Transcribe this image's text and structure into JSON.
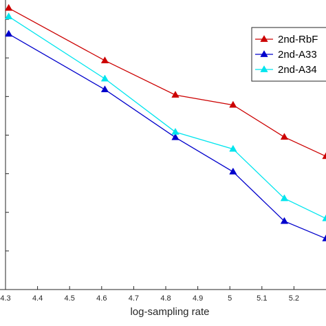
{
  "chart_data": {
    "type": "line",
    "xlabel": "log-sampling rate",
    "ylabel": "",
    "title": "",
    "xlim": [
      4.3,
      5.3
    ],
    "ylim": [
      0.03,
      0.105
    ],
    "grid": false,
    "legend_position": "top-right",
    "x_tick_labels": [
      "4.3",
      "4.4",
      "4.5",
      "4.6",
      "4.7",
      "4.8",
      "4.9",
      "5",
      "5.1",
      "5.2"
    ],
    "x_ticks": [
      4.3,
      4.4,
      4.5,
      4.6,
      4.7,
      4.8,
      4.9,
      5.0,
      5.1,
      5.2
    ],
    "y_ticks": [
      0.1,
      0.09,
      0.08,
      0.07,
      0.06,
      0.05,
      0.04
    ],
    "series": [
      {
        "name": "2nd-RbF",
        "color": "#cc0000",
        "marker": "triangle",
        "x": [
          4.31,
          4.61,
          4.83,
          5.01,
          5.17,
          5.3
        ],
        "y": [
          0.1029,
          0.0893,
          0.0804,
          0.0778,
          0.0695,
          0.0645
        ]
      },
      {
        "name": "2nd-A33",
        "color": "#0000cc",
        "marker": "triangle",
        "x": [
          4.31,
          4.61,
          4.83,
          5.01,
          5.17,
          5.3
        ],
        "y": [
          0.0962,
          0.0818,
          0.0694,
          0.0605,
          0.0477,
          0.0432
        ]
      },
      {
        "name": "2nd-A34",
        "color": "#00e5ee",
        "marker": "triangle",
        "x": [
          4.31,
          4.61,
          4.83,
          5.01,
          5.17,
          5.3
        ],
        "y": [
          0.1007,
          0.0846,
          0.0708,
          0.0664,
          0.0536,
          0.0484
        ]
      }
    ]
  }
}
